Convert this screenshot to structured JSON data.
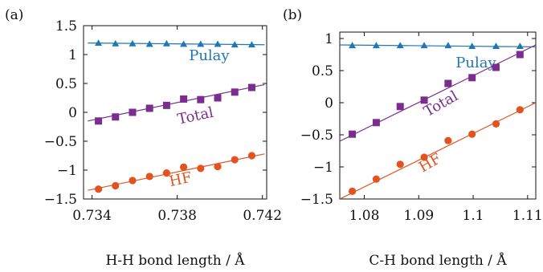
{
  "colors": {
    "pulay": "#1f77b4",
    "total": "#7b2d8e",
    "hf": "#e2531f"
  },
  "chart_data": [
    {
      "type": "line",
      "panel_label": "(a)",
      "xlabel": "H-H bond length / Å",
      "ylabel": "",
      "xlim": [
        0.7336,
        0.7422
      ],
      "ylim": [
        -1.5,
        1.5
      ],
      "xticks": [
        0.734,
        0.738,
        0.742
      ],
      "xtick_labels": [
        "0.734",
        "0.738",
        "0.742"
      ],
      "yticks": [
        1.5,
        1,
        0.5,
        0,
        -0.5,
        -1,
        -1.5
      ],
      "ytick_labels": [
        "1.5",
        "1",
        "0.5",
        "0",
        "−0.5",
        "−1",
        "−1.5"
      ],
      "series": [
        {
          "name": "Pulay",
          "marker": "triangle",
          "color_key": "pulay",
          "x": [
            0.7343,
            0.7351,
            0.7359,
            0.7367,
            0.7375,
            0.7383,
            0.7391,
            0.7399,
            0.7407,
            0.7415
          ],
          "y": [
            1.2,
            1.19,
            1.19,
            1.18,
            1.19,
            1.18,
            1.18,
            1.18,
            1.17,
            1.17
          ],
          "fit": [
            [
              0.7338,
              1.2
            ],
            [
              0.7421,
              1.17
            ]
          ],
          "label_pos": {
            "x": 0.7395,
            "y": 0.9
          },
          "label_rotate": 0
        },
        {
          "name": "Total",
          "marker": "square",
          "color_key": "total",
          "x": [
            0.7343,
            0.7351,
            0.7359,
            0.7367,
            0.7375,
            0.7383,
            0.7391,
            0.7399,
            0.7407,
            0.7415
          ],
          "y": [
            -0.15,
            -0.08,
            0.0,
            0.07,
            0.12,
            0.23,
            0.22,
            0.25,
            0.35,
            0.43
          ],
          "fit": [
            [
              0.7338,
              -0.15
            ],
            [
              0.7421,
              0.48
            ]
          ],
          "label_pos": {
            "x": 0.7389,
            "y": -0.14
          },
          "label_rotate": -12
        },
        {
          "name": "HF",
          "marker": "circle",
          "color_key": "hf",
          "x": [
            0.7343,
            0.7351,
            0.7359,
            0.7367,
            0.7375,
            0.7383,
            0.7391,
            0.7399,
            0.7407,
            0.7415
          ],
          "y": [
            -1.33,
            -1.27,
            -1.18,
            -1.11,
            -1.05,
            -0.95,
            -0.97,
            -0.94,
            -0.82,
            -0.75
          ],
          "fit": [
            [
              0.7338,
              -1.35
            ],
            [
              0.7421,
              -0.72
            ]
          ],
          "label_pos": {
            "x": 0.7382,
            "y": -1.24
          },
          "label_rotate": -12
        }
      ]
    },
    {
      "type": "line",
      "panel_label": "(b)",
      "xlabel": "C-H bond length / Å",
      "ylabel": "",
      "xlim": [
        1.0755,
        1.1115
      ],
      "ylim": [
        -1.5,
        1.1
      ],
      "xticks": [
        1.08,
        1.09,
        1.1,
        1.11
      ],
      "xtick_labels": [
        "1.08",
        "1.09",
        "1.1",
        "1.11"
      ],
      "yticks": [
        1,
        0.5,
        0,
        -0.5,
        -1,
        -1.5
      ],
      "ytick_labels": [
        "1",
        "0.5",
        "0",
        "−0.5",
        "−1",
        "−1.5"
      ],
      "series": [
        {
          "name": "Pulay",
          "marker": "triangle",
          "color_key": "pulay",
          "x": [
            1.0778,
            1.0822,
            1.0866,
            1.091,
            1.0954,
            1.0998,
            1.1042,
            1.1086
          ],
          "y": [
            0.89,
            0.89,
            0.89,
            0.89,
            0.89,
            0.88,
            0.88,
            0.88
          ],
          "fit": [
            [
              1.0755,
              0.9
            ],
            [
              1.1115,
              0.87
            ]
          ],
          "label_pos": {
            "x": 1.1005,
            "y": 0.55
          },
          "label_rotate": 0
        },
        {
          "name": "Total",
          "marker": "square",
          "color_key": "total",
          "x": [
            1.0778,
            1.0822,
            1.0866,
            1.091,
            1.0954,
            1.0998,
            1.1042,
            1.1086
          ],
          "y": [
            -0.49,
            -0.31,
            -0.06,
            0.04,
            0.3,
            0.39,
            0.55,
            0.75
          ],
          "fit": [
            [
              1.0755,
              -0.6
            ],
            [
              1.1115,
              0.9
            ]
          ],
          "label_pos": {
            "x": 1.0945,
            "y": -0.08
          },
          "label_rotate": -30
        },
        {
          "name": "HF",
          "marker": "circle",
          "color_key": "hf",
          "x": [
            1.0778,
            1.0822,
            1.0866,
            1.091,
            1.0954,
            1.0998,
            1.1042,
            1.1086
          ],
          "y": [
            -1.38,
            -1.19,
            -0.96,
            -0.85,
            -0.59,
            -0.49,
            -0.33,
            -0.11
          ],
          "fit": [
            [
              1.0755,
              -1.5
            ],
            [
              1.1115,
              0.0
            ]
          ],
          "label_pos": {
            "x": 1.0925,
            "y": -1.0
          },
          "label_rotate": -30
        }
      ]
    }
  ]
}
